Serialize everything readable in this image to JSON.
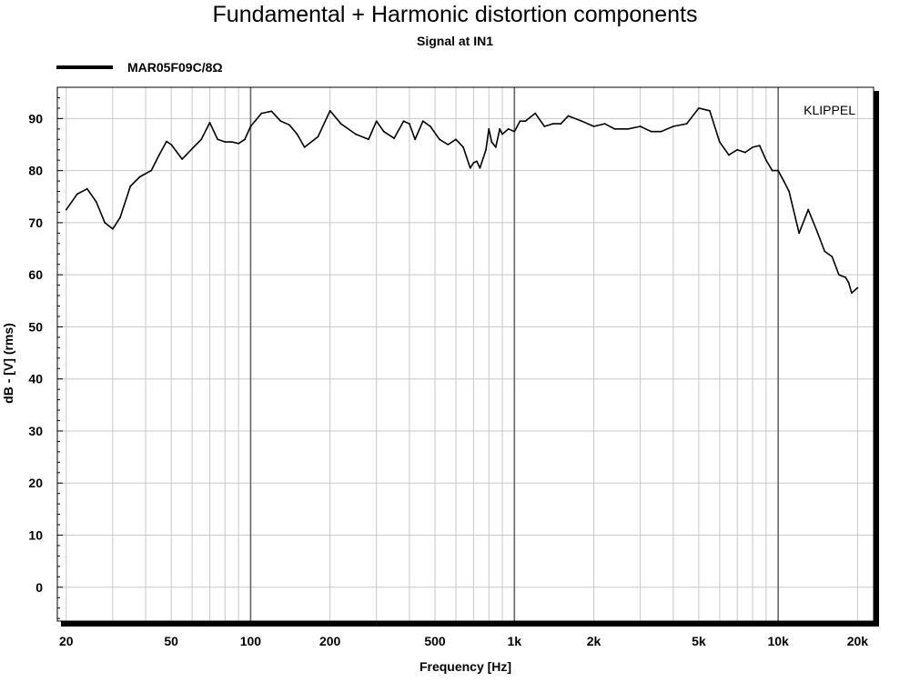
{
  "chart_data": {
    "type": "line",
    "title": "Fundamental + Harmonic distortion components",
    "subtitle": "Signal at IN1",
    "xlabel": "Frequency [Hz]",
    "ylabel": "dB - [V]  (rms)",
    "x_scale": "log",
    "xlim": [
      18.5,
      23000
    ],
    "ylim": [
      -6.5,
      96
    ],
    "x_ticks": [
      {
        "value": 20,
        "label": "20"
      },
      {
        "value": 50,
        "label": "50"
      },
      {
        "value": 100,
        "label": "100"
      },
      {
        "value": 200,
        "label": "200"
      },
      {
        "value": 500,
        "label": "500"
      },
      {
        "value": 1000,
        "label": "1k"
      },
      {
        "value": 2000,
        "label": "2k"
      },
      {
        "value": 5000,
        "label": "5k"
      },
      {
        "value": 10000,
        "label": "10k"
      },
      {
        "value": 20000,
        "label": "20k"
      }
    ],
    "y_ticks": [
      {
        "value": 90,
        "label": "90"
      },
      {
        "value": 80,
        "label": "80"
      },
      {
        "value": 70,
        "label": "70"
      },
      {
        "value": 60,
        "label": "60"
      },
      {
        "value": 50,
        "label": "50"
      },
      {
        "value": 40,
        "label": "40"
      },
      {
        "value": 30,
        "label": "30"
      },
      {
        "value": 20,
        "label": "20"
      },
      {
        "value": 10,
        "label": "10"
      },
      {
        "value": 0,
        "label": "0"
      }
    ],
    "grid": true,
    "legend": "top-left",
    "watermark": "KLIPPEL",
    "series": [
      {
        "name": "MAR05F09C/8Ω",
        "color": "#000000",
        "x": [
          20,
          22,
          24,
          26,
          28,
          30,
          32,
          35,
          38,
          42,
          45,
          48,
          50,
          55,
          60,
          65,
          70,
          75,
          80,
          85,
          90,
          95,
          100,
          110,
          120,
          130,
          140,
          150,
          160,
          180,
          200,
          220,
          250,
          280,
          300,
          320,
          350,
          380,
          400,
          420,
          450,
          480,
          520,
          560,
          600,
          640,
          680,
          700,
          720,
          740,
          780,
          800,
          820,
          850,
          880,
          900,
          950,
          1000,
          1050,
          1100,
          1200,
          1300,
          1400,
          1500,
          1600,
          1800,
          2000,
          2200,
          2400,
          2700,
          3000,
          3300,
          3600,
          4000,
          4500,
          5000,
          5500,
          6000,
          6500,
          7000,
          7500,
          8000,
          8500,
          9000,
          9500,
          10000,
          10500,
          11000,
          12000,
          13000,
          14000,
          15000,
          16000,
          17000,
          18000,
          18500,
          19000,
          20000
        ],
        "values": [
          72.5,
          75.5,
          76.5,
          74,
          70,
          68.8,
          71,
          77,
          78.8,
          80,
          83,
          85.6,
          85,
          82.2,
          84.2,
          86,
          89.2,
          86,
          85.5,
          85.5,
          85.2,
          86,
          88.5,
          91,
          91.4,
          89.5,
          88.8,
          87,
          84.5,
          86.5,
          91.5,
          89,
          87,
          86,
          89.5,
          87.5,
          86.2,
          89.5,
          89,
          86,
          89.5,
          88.5,
          86,
          85,
          86,
          84.5,
          80.5,
          81.5,
          81.8,
          80.5,
          84,
          88,
          85.5,
          84.5,
          88,
          87,
          88,
          87.5,
          89.5,
          89.5,
          91,
          88.5,
          89,
          89,
          90.5,
          89.5,
          88.5,
          89,
          88,
          88,
          88.5,
          87.5,
          87.5,
          88.5,
          89,
          92,
          91.5,
          85.5,
          83,
          84,
          83.5,
          84.5,
          84.8,
          82,
          80,
          80,
          78,
          76,
          68,
          72.5,
          68.5,
          64.5,
          63.5,
          60,
          59.5,
          58.5,
          56.5,
          57.5
        ]
      }
    ]
  }
}
